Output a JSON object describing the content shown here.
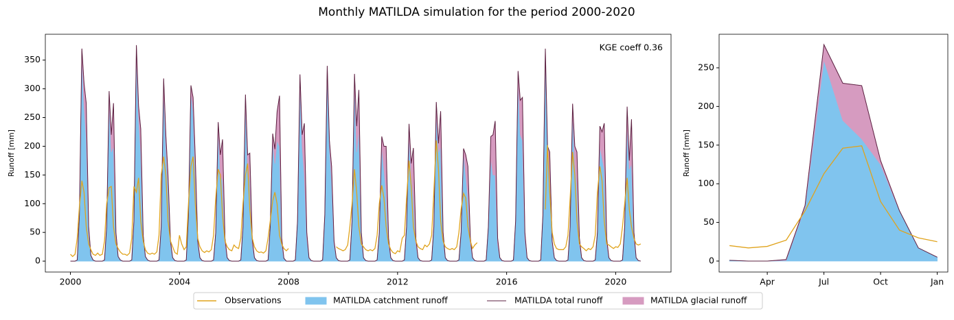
{
  "title": "Monthly MATILDA simulation for the period 2000-2020",
  "chart_data": [
    {
      "type": "line",
      "ylabel": "Runoff [mm]",
      "annotation": "KGE coeff 0.36",
      "xlim": [
        1999.08,
        2022.03
      ],
      "xticks": [
        2000,
        2004,
        2008,
        2012,
        2016,
        2020
      ],
      "ylim": [
        -19,
        395
      ],
      "yticks": [
        0,
        50,
        100,
        150,
        200,
        250,
        300,
        350
      ],
      "x": [
        2000,
        2000.08,
        2000.17,
        2000.25,
        2000.33,
        2000.42,
        2000.5,
        2000.58,
        2000.67,
        2000.75,
        2000.83,
        2000.92,
        2001,
        2001.08,
        2001.17,
        2001.25,
        2001.33,
        2001.42,
        2001.5,
        2001.58,
        2001.67,
        2001.75,
        2001.83,
        2001.92,
        2002,
        2002.08,
        2002.17,
        2002.25,
        2002.33,
        2002.42,
        2002.5,
        2002.58,
        2002.67,
        2002.75,
        2002.83,
        2002.92,
        2003,
        2003.08,
        2003.17,
        2003.25,
        2003.33,
        2003.42,
        2003.5,
        2003.58,
        2003.67,
        2003.75,
        2003.83,
        2003.92,
        2004,
        2004.08,
        2004.17,
        2004.25,
        2004.33,
        2004.42,
        2004.5,
        2004.58,
        2004.67,
        2004.75,
        2004.83,
        2004.92,
        2005,
        2005.08,
        2005.17,
        2005.25,
        2005.33,
        2005.42,
        2005.5,
        2005.58,
        2005.67,
        2005.75,
        2005.83,
        2005.92,
        2006,
        2006.08,
        2006.17,
        2006.25,
        2006.33,
        2006.42,
        2006.5,
        2006.58,
        2006.67,
        2006.75,
        2006.83,
        2006.92,
        2007,
        2007.08,
        2007.17,
        2007.25,
        2007.33,
        2007.42,
        2007.5,
        2007.58,
        2007.67,
        2007.75,
        2007.83,
        2007.92,
        2008,
        2008.08,
        2008.17,
        2008.25,
        2008.33,
        2008.42,
        2008.5,
        2008.58,
        2008.67,
        2008.75,
        2008.83,
        2008.92,
        2009,
        2009.08,
        2009.17,
        2009.25,
        2009.33,
        2009.42,
        2009.5,
        2009.58,
        2009.67,
        2009.75,
        2009.83,
        2009.92,
        2010,
        2010.08,
        2010.17,
        2010.25,
        2010.33,
        2010.42,
        2010.5,
        2010.58,
        2010.67,
        2010.75,
        2010.83,
        2010.92,
        2011,
        2011.08,
        2011.17,
        2011.25,
        2011.33,
        2011.42,
        2011.5,
        2011.58,
        2011.67,
        2011.75,
        2011.83,
        2011.92,
        2012,
        2012.08,
        2012.17,
        2012.25,
        2012.33,
        2012.42,
        2012.5,
        2012.58,
        2012.67,
        2012.75,
        2012.83,
        2012.92,
        2013,
        2013.08,
        2013.17,
        2013.25,
        2013.33,
        2013.42,
        2013.5,
        2013.58,
        2013.67,
        2013.75,
        2013.83,
        2013.92,
        2014,
        2014.08,
        2014.17,
        2014.25,
        2014.33,
        2014.42,
        2014.5,
        2014.58,
        2014.67,
        2014.75,
        2014.83,
        2014.92,
        2015,
        2015.08,
        2015.17,
        2015.25,
        2015.33,
        2015.42,
        2015.5,
        2015.58,
        2015.67,
        2015.75,
        2015.83,
        2015.92,
        2016,
        2016.08,
        2016.17,
        2016.25,
        2016.33,
        2016.42,
        2016.5,
        2016.58,
        2016.67,
        2016.75,
        2016.83,
        2016.92,
        2017,
        2017.08,
        2017.17,
        2017.25,
        2017.33,
        2017.42,
        2017.5,
        2017.58,
        2017.67,
        2017.75,
        2017.83,
        2017.92,
        2018,
        2018.08,
        2018.17,
        2018.25,
        2018.33,
        2018.42,
        2018.5,
        2018.58,
        2018.67,
        2018.75,
        2018.83,
        2018.92,
        2019,
        2019.08,
        2019.17,
        2019.25,
        2019.33,
        2019.42,
        2019.5,
        2019.58,
        2019.67,
        2019.75,
        2019.83,
        2019.92,
        2020,
        2020.08,
        2020.17,
        2020.25,
        2020.33,
        2020.42,
        2020.5,
        2020.58,
        2020.67,
        2020.75,
        2020.83,
        2020.92
      ],
      "series": [
        {
          "name": "Observations",
          "type": "line",
          "color": "#e0a31c",
          "values": [
            12,
            8,
            12,
            40,
            95,
            140,
            120,
            60,
            30,
            20,
            12,
            10,
            14,
            10,
            12,
            35,
            100,
            128,
            130,
            60,
            30,
            22,
            16,
            12,
            12,
            10,
            14,
            40,
            130,
            120,
            145,
            70,
            35,
            20,
            14,
            12,
            14,
            12,
            16,
            45,
            150,
            182,
            150,
            70,
            35,
            25,
            15,
            12,
            45,
            30,
            20,
            25,
            100,
            165,
            182,
            100,
            40,
            25,
            18,
            15,
            18,
            16,
            20,
            45,
            110,
            160,
            150,
            80,
            35,
            25,
            20,
            18,
            28,
            24,
            22,
            40,
            100,
            150,
            170,
            90,
            40,
            25,
            18,
            15,
            16,
            14,
            18,
            40,
            70,
            105,
            120,
            100,
            45,
            30,
            22,
            18,
            22,
            null,
            null,
            null,
            null,
            null,
            null,
            null,
            null,
            null,
            null,
            null,
            null,
            null,
            null,
            null,
            null,
            null,
            null,
            null,
            null,
            25,
            22,
            20,
            18,
            20,
            28,
            60,
            100,
            160,
            120,
            60,
            30,
            25,
            20,
            18,
            20,
            18,
            22,
            45,
            100,
            132,
            110,
            60,
            30,
            20,
            15,
            13,
            18,
            16,
            40,
            45,
            110,
            175,
            130,
            60,
            35,
            25,
            22,
            20,
            28,
            25,
            30,
            45,
            120,
            210,
            160,
            70,
            35,
            25,
            22,
            20,
            22,
            20,
            25,
            50,
            90,
            118,
            110,
            60,
            35,
            22,
            28,
            32,
            null,
            null,
            null,
            null,
            null,
            null,
            null,
            null,
            null,
            null,
            null,
            null,
            null,
            null,
            null,
            null,
            null,
            null,
            null,
            null,
            null,
            null,
            null,
            null,
            null,
            null,
            null,
            null,
            null,
            90,
            202,
            120,
            50,
            30,
            22,
            20,
            20,
            20,
            25,
            45,
            110,
            190,
            150,
            70,
            30,
            25,
            22,
            18,
            22,
            20,
            25,
            45,
            120,
            165,
            140,
            70,
            30,
            28,
            25,
            22,
            25,
            24,
            30,
            60,
            100,
            145,
            90,
            60,
            40,
            30,
            28,
            30
          ]
        },
        {
          "name": "MATILDA catchment runoff",
          "type": "area",
          "color": "#80c4ee",
          "values": [
            0,
            0,
            0,
            2,
            80,
            360,
            270,
            215,
            50,
            10,
            2,
            0,
            0,
            0,
            0,
            2,
            60,
            280,
            190,
            200,
            40,
            8,
            2,
            0,
            0,
            0,
            0,
            2,
            70,
            360,
            250,
            190,
            40,
            8,
            2,
            0,
            0,
            0,
            0,
            2,
            60,
            300,
            200,
            130,
            30,
            6,
            1,
            0,
            0,
            0,
            0,
            2,
            80,
            295,
            260,
            150,
            30,
            6,
            1,
            0,
            0,
            0,
            0,
            2,
            50,
            230,
            150,
            140,
            30,
            6,
            1,
            0,
            0,
            0,
            0,
            2,
            60,
            280,
            160,
            140,
            30,
            6,
            1,
            0,
            0,
            0,
            0,
            2,
            60,
            210,
            170,
            210,
            200,
            30,
            5,
            0,
            0,
            0,
            0,
            2,
            70,
            310,
            200,
            150,
            40,
            6,
            1,
            0,
            0,
            0,
            0,
            2,
            80,
            330,
            200,
            140,
            30,
            6,
            1,
            0,
            0,
            0,
            0,
            2,
            70,
            310,
            190,
            230,
            40,
            6,
            1,
            0,
            0,
            0,
            0,
            2,
            50,
            200,
            160,
            120,
            30,
            6,
            1,
            0,
            0,
            0,
            0,
            2,
            60,
            220,
            150,
            110,
            30,
            6,
            1,
            0,
            0,
            0,
            0,
            2,
            60,
            260,
            190,
            200,
            40,
            6,
            1,
            0,
            0,
            0,
            0,
            2,
            50,
            190,
            150,
            110,
            30,
            6,
            1,
            0,
            0,
            0,
            0,
            2,
            60,
            180,
            150,
            150,
            30,
            6,
            1,
            0,
            0,
            0,
            0,
            2,
            70,
            320,
            220,
            210,
            40,
            6,
            1,
            0,
            0,
            0,
            0,
            2,
            80,
            360,
            190,
            150,
            30,
            6,
            1,
            0,
            0,
            0,
            0,
            2,
            60,
            260,
            170,
            130,
            30,
            6,
            1,
            0,
            0,
            0,
            0,
            2,
            50,
            200,
            180,
            160,
            30,
            6,
            1,
            0,
            0,
            0,
            0,
            2,
            60,
            240,
            160,
            170,
            40,
            6,
            1,
            0
          ]
        },
        {
          "name": "MATILDA total runoff",
          "type": "stack-top",
          "color": "#5b2040"
        },
        {
          "name": "MATILDA glacial runoff",
          "type": "area",
          "color": "#d69bc0",
          "values": [
            0,
            0,
            0,
            0,
            0,
            10,
            40,
            60,
            10,
            0,
            0,
            0,
            0,
            0,
            0,
            0,
            0,
            16,
            30,
            75,
            10,
            0,
            0,
            0,
            0,
            0,
            0,
            0,
            0,
            16,
            20,
            40,
            5,
            0,
            0,
            0,
            0,
            0,
            0,
            0,
            0,
            18,
            20,
            20,
            5,
            0,
            0,
            0,
            0,
            0,
            0,
            0,
            0,
            11,
            25,
            30,
            5,
            0,
            0,
            0,
            0,
            0,
            0,
            0,
            0,
            12,
            35,
            72,
            10,
            0,
            0,
            0,
            0,
            0,
            0,
            0,
            0,
            10,
            25,
            48,
            8,
            0,
            0,
            0,
            0,
            0,
            0,
            0,
            0,
            12,
            25,
            50,
            88,
            10,
            0,
            0,
            0,
            0,
            0,
            0,
            0,
            15,
            20,
            90,
            10,
            0,
            0,
            0,
            0,
            0,
            0,
            0,
            0,
            10,
            10,
            25,
            5,
            0,
            0,
            0,
            0,
            0,
            0,
            0,
            0,
            16,
            45,
            68,
            10,
            0,
            0,
            0,
            0,
            0,
            0,
            0,
            0,
            17,
            40,
            80,
            10,
            0,
            0,
            0,
            0,
            0,
            0,
            0,
            0,
            19,
            20,
            87,
            10,
            0,
            0,
            0,
            0,
            0,
            0,
            0,
            0,
            17,
            15,
            61,
            10,
            0,
            0,
            0,
            0,
            0,
            0,
            0,
            0,
            6,
            35,
            55,
            10,
            0,
            0,
            0,
            0,
            0,
            0,
            0,
            0,
            37,
            70,
            94,
            10,
            0,
            0,
            0,
            0,
            0,
            0,
            0,
            0,
            11,
            60,
            75,
            10,
            0,
            0,
            0,
            0,
            0,
            0,
            0,
            0,
            10,
            10,
            40,
            5,
            0,
            0,
            0,
            0,
            0,
            0,
            0,
            0,
            14,
            30,
            60,
            10,
            0,
            0,
            0,
            0,
            0,
            0,
            0,
            0,
            35,
            45,
            80,
            10,
            0,
            0,
            0,
            0,
            0,
            0,
            0,
            0,
            29,
            15,
            77,
            10,
            0,
            0,
            0
          ]
        }
      ]
    },
    {
      "type": "line",
      "ylabel": "Runoff [mm]",
      "xlim": [
        0.45,
        12.56
      ],
      "xticks": [
        {
          "value": 3,
          "label": "Apr"
        },
        {
          "value": 6,
          "label": "Jul"
        },
        {
          "value": 9,
          "label": "Oct"
        },
        {
          "value": 12,
          "label": "Jan"
        }
      ],
      "ylim": [
        -14.2,
        293.4
      ],
      "yticks": [
        0,
        50,
        100,
        150,
        200,
        250
      ],
      "x": [
        1,
        2,
        3,
        4,
        5,
        6,
        7,
        8,
        9,
        10,
        11,
        12
      ],
      "series": [
        {
          "type": "line",
          "color": "#e0a31c",
          "values": [
            20,
            17,
            19,
            27,
            65,
            113,
            146,
            149,
            77,
            40,
            30,
            25
          ]
        },
        {
          "type": "area",
          "color": "#80c4ee",
          "values": [
            1,
            0,
            0,
            1,
            70,
            260,
            182,
            158,
            125,
            65,
            17,
            5
          ]
        },
        {
          "type": "stack-top",
          "color": "#5b2040"
        },
        {
          "type": "area",
          "color": "#d69bc0",
          "values": [
            0,
            0,
            0,
            1,
            2,
            20,
            48,
            69,
            5,
            0,
            0,
            0
          ]
        }
      ]
    }
  ]
}
